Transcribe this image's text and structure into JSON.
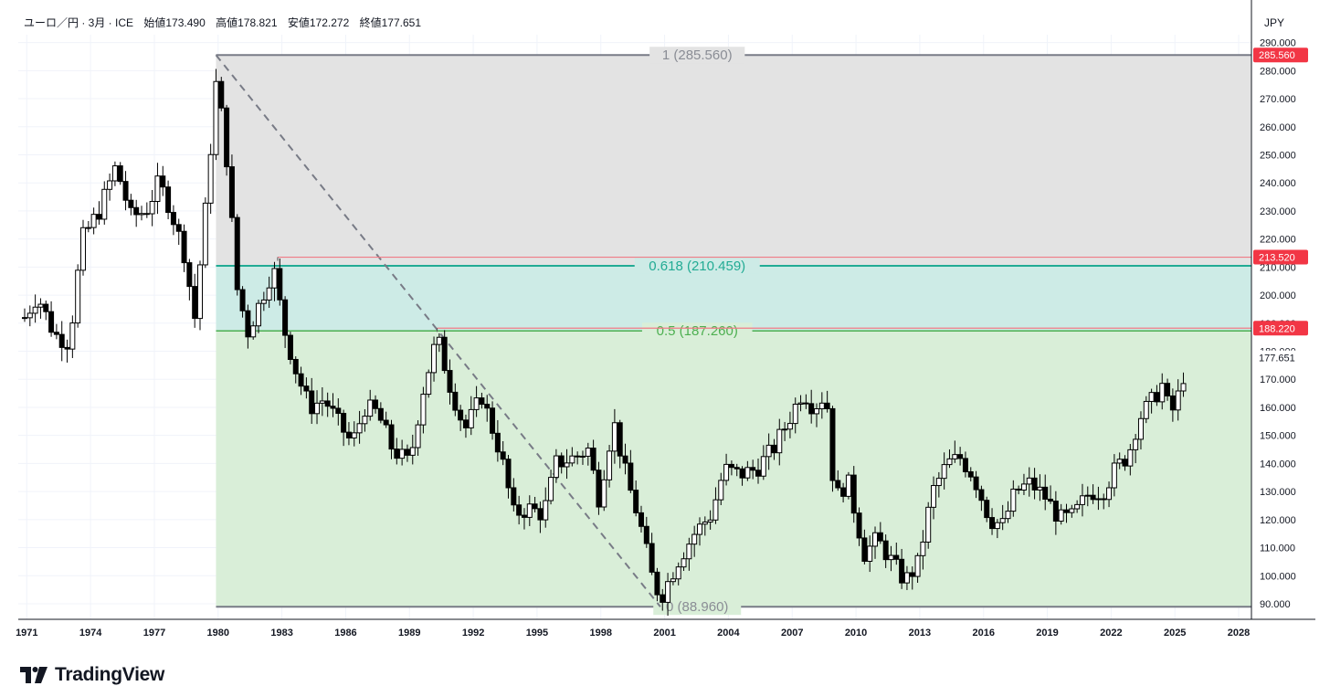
{
  "header": {
    "symbol": "ユーロ／円 · 3月 · ICE",
    "open_label": "始値",
    "open": "173.490",
    "high_label": "高値",
    "high": "178.821",
    "low_label": "安値",
    "low": "172.272",
    "close_label": "終値",
    "close": "177.651"
  },
  "currency": "JPY",
  "brand": {
    "name": "TradingView"
  },
  "colors": {
    "up_body": "#ffffff",
    "down_body": "#000000",
    "wick": "#000000",
    "fib_top_fill": "#e3e3e3",
    "fib_mid_fill": "#cdebe6",
    "fib_low_fill": "#d9eed8",
    "fib_1_line": "#787b86",
    "fib_0618_line": "#22ab94",
    "fib_05_line": "#4caf50",
    "price_tag_red": "#f23645",
    "grid": "#f0f3fa"
  },
  "chart_data": {
    "type": "candlestick",
    "interval": "3M",
    "y_axis": {
      "min": 85,
      "max": 290,
      "ticks": [
        "290.000",
        "280.000",
        "270.000",
        "260.000",
        "250.000",
        "240.000",
        "230.000",
        "220.000",
        "210.000",
        "200.000",
        "190.000",
        "180.000",
        "170.000",
        "160.000",
        "150.000",
        "140.000",
        "130.000",
        "120.000",
        "110.000",
        "100.000",
        "90.000"
      ],
      "tick_values": [
        290,
        280,
        270,
        260,
        250,
        240,
        230,
        220,
        210,
        200,
        190,
        180,
        170,
        160,
        150,
        140,
        130,
        120,
        110,
        100,
        90
      ]
    },
    "x_axis": {
      "ticks": [
        "1971",
        "1974",
        "1977",
        "1980",
        "1983",
        "1986",
        "1989",
        "1992",
        "1995",
        "1998",
        "2001",
        "2004",
        "2007",
        "2010",
        "2013",
        "2016",
        "2019",
        "2022",
        "2025",
        "2028"
      ],
      "tick_years": [
        1971,
        1974,
        1977,
        1980,
        1983,
        1986,
        1989,
        1992,
        1995,
        1998,
        2001,
        2004,
        2007,
        2010,
        2013,
        2016,
        2019,
        2022,
        2025,
        2028
      ]
    },
    "fib_levels": [
      {
        "label": "1 (285.560)",
        "value": 285.56
      },
      {
        "label": "0.618 (210.459)",
        "value": 210.459
      },
      {
        "label": "0.5 (187.260)",
        "value": 187.26
      },
      {
        "label": "0 (88.960)",
        "value": 88.96
      }
    ],
    "fib_start_year": 1979.9,
    "trend_line": {
      "from": [
        1979.9,
        285.56
      ],
      "to": [
        2000.8,
        88.96
      ]
    },
    "horizontal_lines": [
      {
        "from_year": 1982.8,
        "value": 213.52
      },
      {
        "from_year": 1990.3,
        "value": 188.22
      }
    ],
    "price_tags": [
      {
        "text": "285.560",
        "value": 285.56,
        "style": "red"
      },
      {
        "text": "213.520",
        "value": 213.52,
        "style": "red"
      },
      {
        "text": "188.220",
        "value": 188.22,
        "style": "red"
      },
      {
        "text": "177.651",
        "value": 177.651,
        "style": "plain"
      }
    ],
    "anchors": [
      [
        1970.9,
        192
      ],
      [
        1971.5,
        200
      ],
      [
        1972.3,
        186
      ],
      [
        1973.0,
        183
      ],
      [
        1973.6,
        220
      ],
      [
        1974.4,
        230
      ],
      [
        1975.2,
        246
      ],
      [
        1975.9,
        228
      ],
      [
        1976.6,
        230
      ],
      [
        1977.2,
        240
      ],
      [
        1977.7,
        232
      ],
      [
        1978.4,
        215
      ],
      [
        1978.9,
        192
      ],
      [
        1979.4,
        230
      ],
      [
        1979.9,
        275
      ],
      [
        1980.3,
        258
      ],
      [
        1980.9,
        202
      ],
      [
        1981.4,
        187
      ],
      [
        1982.0,
        198
      ],
      [
        1982.6,
        210
      ],
      [
        1983.1,
        188
      ],
      [
        1983.7,
        172
      ],
      [
        1984.3,
        160
      ],
      [
        1985.0,
        163
      ],
      [
        1985.6,
        155
      ],
      [
        1986.3,
        147
      ],
      [
        1986.9,
        160
      ],
      [
        1987.5,
        158
      ],
      [
        1988.2,
        145
      ],
      [
        1989.0,
        140
      ],
      [
        1989.6,
        165
      ],
      [
        1990.3,
        185
      ],
      [
        1990.9,
        168
      ],
      [
        1991.6,
        152
      ],
      [
        1992.4,
        164
      ],
      [
        1993.3,
        143
      ],
      [
        1993.9,
        122
      ],
      [
        1994.6,
        124
      ],
      [
        1995.3,
        122
      ],
      [
        1995.9,
        140
      ],
      [
        1996.7,
        142
      ],
      [
        1997.4,
        145
      ],
      [
        1997.9,
        128
      ],
      [
        1998.6,
        155
      ],
      [
        1999.2,
        135
      ],
      [
        1999.8,
        120
      ],
      [
        2000.4,
        100
      ],
      [
        2000.8,
        92
      ],
      [
        2001.6,
        105
      ],
      [
        2002.4,
        115
      ],
      [
        2003.2,
        122
      ],
      [
        2003.8,
        138
      ],
      [
        2004.5,
        136
      ],
      [
        2005.3,
        138
      ],
      [
        2006.1,
        145
      ],
      [
        2006.8,
        155
      ],
      [
        2007.5,
        166
      ],
      [
        2008.0,
        160
      ],
      [
        2008.6,
        165
      ],
      [
        2009.0,
        127
      ],
      [
        2009.6,
        134
      ],
      [
        2010.4,
        108
      ],
      [
        2011.0,
        113
      ],
      [
        2011.6,
        106
      ],
      [
        2012.3,
        98
      ],
      [
        2012.9,
        104
      ],
      [
        2013.6,
        130
      ],
      [
        2014.3,
        140
      ],
      [
        2014.9,
        142
      ],
      [
        2015.5,
        136
      ],
      [
        2016.3,
        120
      ],
      [
        2016.9,
        118
      ],
      [
        2017.5,
        130
      ],
      [
        2018.2,
        133
      ],
      [
        2018.9,
        128
      ],
      [
        2019.6,
        120
      ],
      [
        2020.2,
        121
      ],
      [
        2021.0,
        130
      ],
      [
        2021.6,
        130
      ],
      [
        2022.2,
        138
      ],
      [
        2022.8,
        143
      ],
      [
        2023.3,
        156
      ],
      [
        2023.9,
        162
      ],
      [
        2024.4,
        168
      ],
      [
        2024.8,
        157
      ],
      [
        2025.2,
        165
      ],
      [
        2025.6,
        177.6
      ]
    ]
  }
}
